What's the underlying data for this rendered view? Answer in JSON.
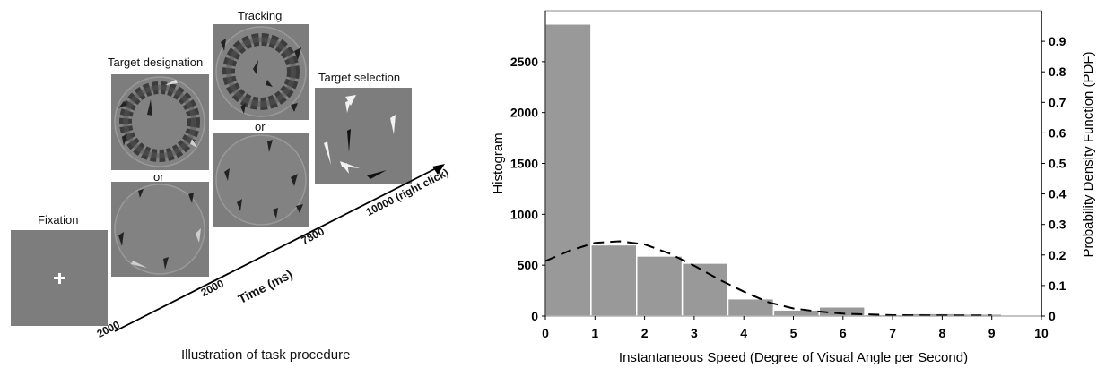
{
  "left": {
    "caption": "Illustration of task procedure",
    "panels": {
      "fixation": "Fixation",
      "target_designation": "Target designation",
      "tracking": "Tracking",
      "target_selection": "Target selection",
      "or_1": "or",
      "or_2": "or"
    },
    "timeline": {
      "axis_label": "Time (ms)",
      "ticks": [
        "2000",
        "2000",
        "7800",
        "10000 (right click)"
      ]
    },
    "colors": {
      "panel_bg": "#7d7d7d",
      "ring_dark": "#3a3a3a"
    }
  },
  "chart_data": {
    "type": "bar",
    "xlabel": "Instantaneous Speed (Degree of Visual Angle per Second)",
    "ylabel": "Histogram",
    "y2label": "Probability Density Function (PDF)",
    "xlim": [
      0,
      10
    ],
    "ylim": [
      0,
      3000
    ],
    "y2lim": [
      0,
      1.0
    ],
    "xticks": [
      "0",
      "1",
      "2",
      "3",
      "4",
      "5",
      "6",
      "7",
      "8",
      "9",
      "10"
    ],
    "yticks": [
      0,
      500,
      1000,
      1500,
      2000,
      2500
    ],
    "y2ticks": [
      0,
      0.1,
      0.2,
      0.3,
      0.4,
      0.5,
      0.6,
      0.7,
      0.8,
      0.9
    ],
    "bin_edges": [
      0,
      0.92,
      1.84,
      2.76,
      3.68,
      4.6,
      5.52,
      6.44,
      7.36,
      8.28,
      9.2
    ],
    "values": [
      2870,
      700,
      590,
      520,
      170,
      60,
      90,
      15,
      25,
      20
    ],
    "pdf_curve": {
      "x": [
        0,
        0.5,
        1.0,
        1.5,
        2.0,
        2.5,
        3.0,
        3.5,
        4.0,
        4.5,
        5.0,
        5.5,
        6.0,
        7.0,
        8.0,
        9.0
      ],
      "y": [
        0.18,
        0.215,
        0.24,
        0.245,
        0.235,
        0.205,
        0.165,
        0.12,
        0.08,
        0.045,
        0.025,
        0.015,
        0.008,
        0.003,
        0.002,
        0.002
      ]
    },
    "grid": false,
    "colors": {
      "bar": "#999999",
      "curve": "#000000"
    }
  }
}
